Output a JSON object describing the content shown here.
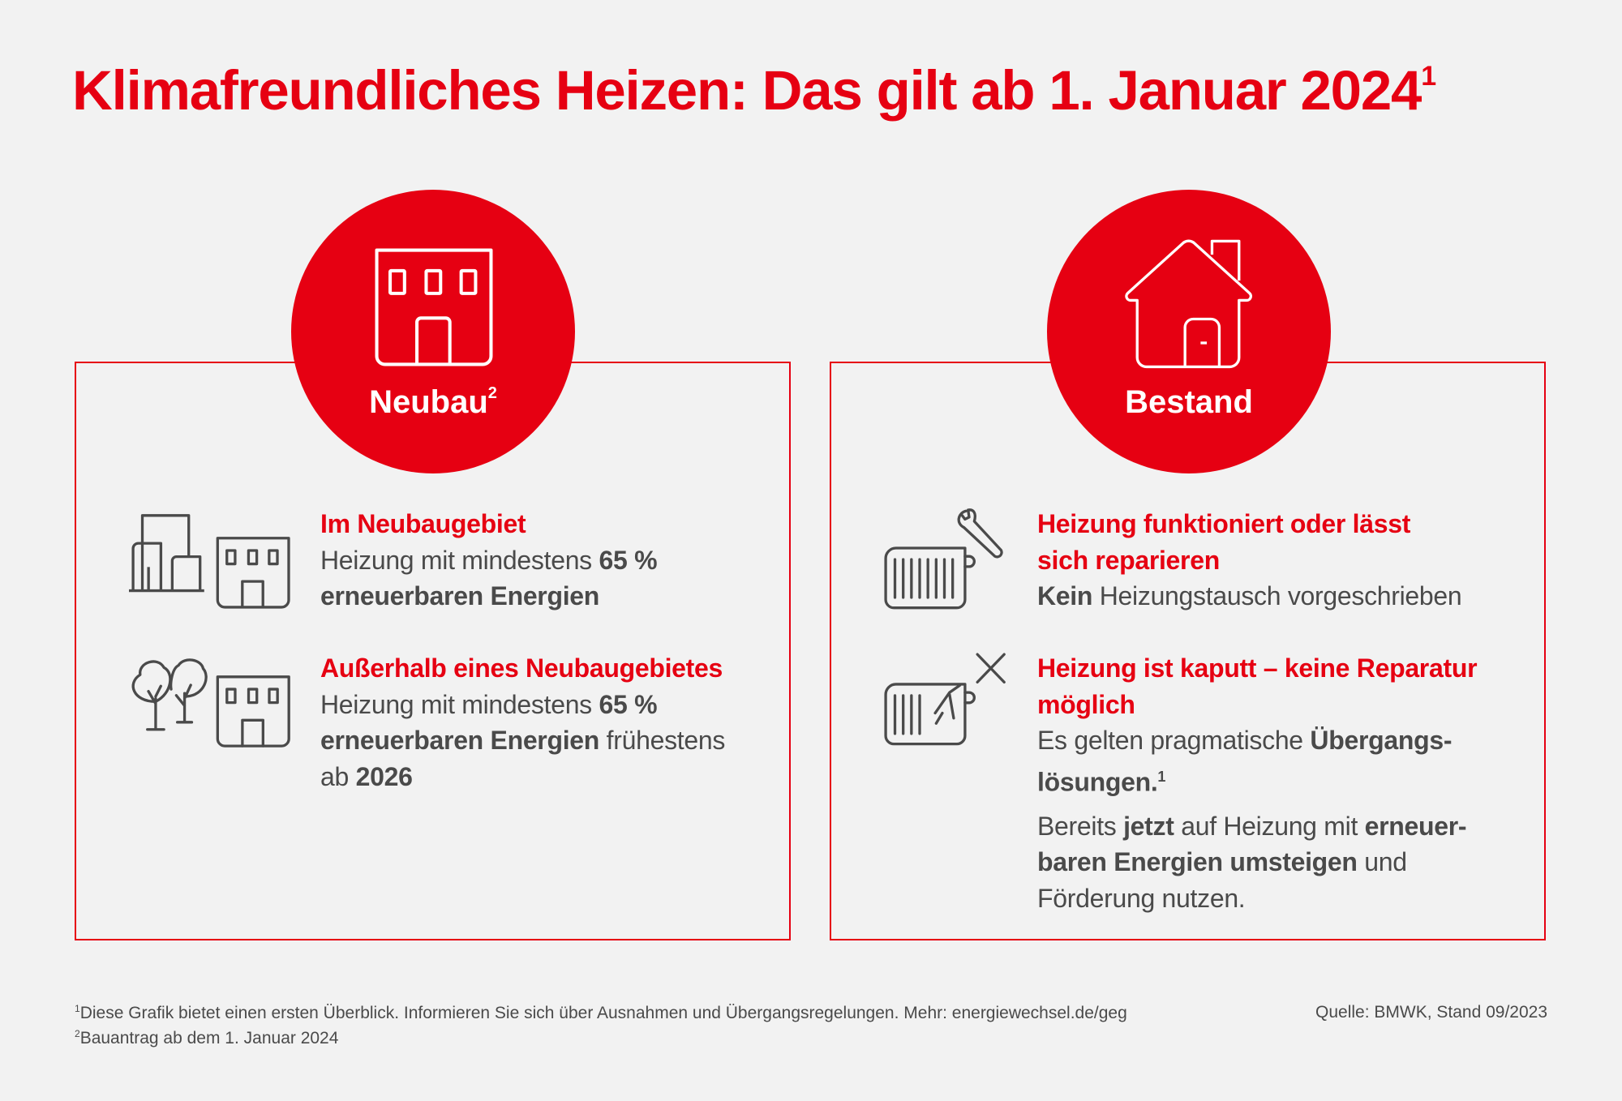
{
  "title": {
    "text": "Klimafreundliches Heizen: Das gilt ab 1. Januar 2024",
    "sup": "1"
  },
  "colors": {
    "accent": "#e60012",
    "text": "#4a4a4a",
    "background": "#f2f2f2"
  },
  "neubau": {
    "label": "Neubau",
    "label_sup": "2",
    "icon": "office-building-icon",
    "items": [
      {
        "icon": "city-buildings-icon",
        "heading": "Im Neubaugebiet",
        "l1a": "Heizung mit mindestens ",
        "l1b": "65 %",
        "l2a": "erneuerbaren Energien"
      },
      {
        "icon": "trees-building-icon",
        "heading": "Außerhalb eines Neubaugebietes",
        "l1a": "Heizung mit mindestens ",
        "l1b": "65 %",
        "l2a": "erneuerbaren Energien",
        "l2b": " frühestens",
        "l3a": "ab ",
        "l3b": "2026"
      }
    ]
  },
  "bestand": {
    "label": "Bestand",
    "icon": "house-icon",
    "items": [
      {
        "icon": "radiator-wrench-icon",
        "h1": "Heizung funktioniert oder lässt",
        "h2": "sich reparieren",
        "b1a": "Kein",
        "b1b": " Heizungstausch vorgeschrieben"
      },
      {
        "icon": "radiator-broken-icon",
        "h1": "Heizung ist kaputt – keine Reparatur",
        "h2": "möglich",
        "b1a": "Es gelten pragmatische ",
        "b1b": "Übergangs-",
        "b2a": "lösungen.",
        "b2sup": "1",
        "c1a": "Bereits ",
        "c1b": "jetzt",
        "c1c": " auf Heizung mit ",
        "c1d": "erneuer-",
        "c2a": "baren Energien umsteigen",
        "c2b": " und",
        "c3a": "Förderung nutzen."
      }
    ]
  },
  "footnotes": {
    "f1_num": "1",
    "f1": "Diese Grafik bietet einen ersten Überblick. Informieren Sie sich über Ausnahmen und Übergangsregelungen. Mehr: energiewechsel.de/geg",
    "f2_num": "2",
    "f2": "Bauantrag ab dem 1. Januar 2024",
    "source": "Quelle: BMWK, Stand 09/2023"
  }
}
